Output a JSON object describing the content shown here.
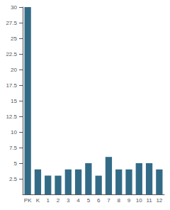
{
  "chart_data": {
    "type": "bar",
    "categories": [
      "PK",
      "K",
      "1",
      "2",
      "3",
      "4",
      "5",
      "6",
      "7",
      "8",
      "9",
      "10",
      "11",
      "12"
    ],
    "values": [
      30,
      4,
      3,
      3,
      4,
      4,
      5,
      3,
      6,
      4,
      4,
      5,
      5,
      4
    ],
    "color": "#336b87",
    "ylim": [
      0,
      30
    ],
    "yticks": [
      2.5,
      5,
      7.5,
      10,
      12.5,
      15,
      17.5,
      20,
      22.5,
      25,
      27.5,
      30
    ],
    "grid": false
  }
}
